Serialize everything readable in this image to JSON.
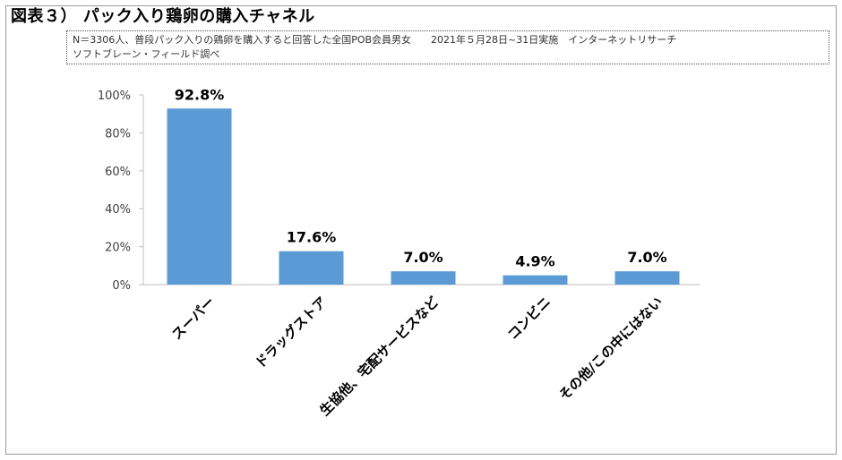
{
  "figure": {
    "title": "図表３） パック入り鶏卵の購入チャネル",
    "note_line1": "N＝3306人、普段パック入りの鶏卵を購入すると回答した全国POB会員男女　　2021年５月28日~31日実施　インターネットリサーチ",
    "note_line2": "ソフトブレーン・フィールド調べ"
  },
  "chart_data": {
    "type": "bar",
    "categories": [
      "スーパー",
      "ドラッグストア",
      "生協他、宅配サービスなど",
      "コンビニ",
      "その他/この中にはない"
    ],
    "values": [
      92.8,
      17.6,
      7.0,
      4.9,
      7.0
    ],
    "value_labels": [
      "92.8%",
      "17.6%",
      "7.0%",
      "4.9%",
      "7.0%"
    ],
    "ylim": [
      0,
      100
    ],
    "yticks": [
      "0%",
      "20%",
      "40%",
      "60%",
      "80%",
      "100%"
    ],
    "xlabel": "",
    "ylabel": "",
    "bar_color": "#5b9bd5",
    "grid": false,
    "legend": false
  }
}
